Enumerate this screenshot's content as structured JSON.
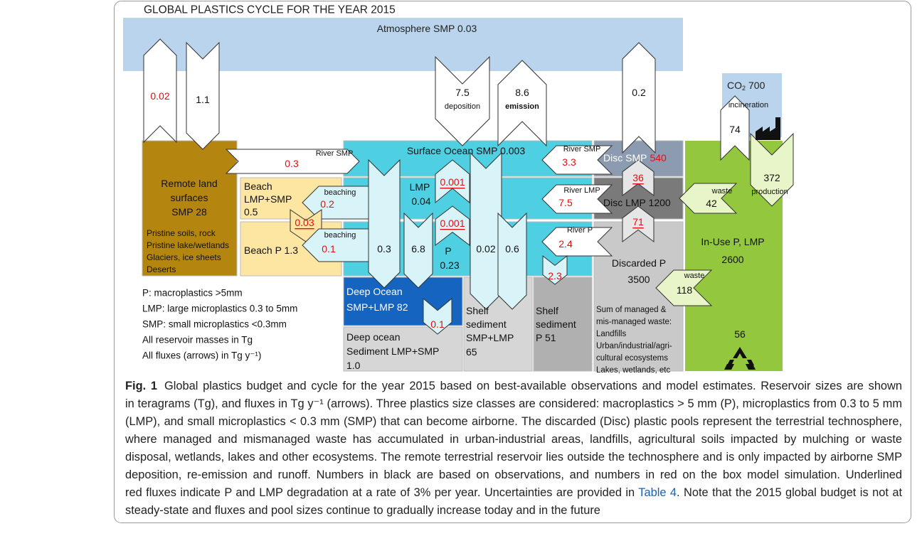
{
  "title": "GLOBAL PLASTICS CYCLE FOR THE YEAR 2015",
  "atmosphere": "Atmosphere SMP 0.03",
  "co2": {
    "name": "CO",
    "subscript": "2",
    "mass": "700"
  },
  "remote_land": {
    "name": [
      "Remote land",
      "surfaces",
      "SMP 28"
    ],
    "types": [
      "Pristine soils, rock",
      "Pristine lake/wetlands",
      "Glaciers, ice sheets",
      "Deserts"
    ]
  },
  "beach_small": [
    "Beach",
    "LMP+SMP",
    "0.5"
  ],
  "beach_macro": "Beach P 1.3",
  "surface_ocean": "Surface Ocean SMP 0.003",
  "ocean_lmp": [
    "LMP",
    "0.04"
  ],
  "ocean_p": [
    "P",
    "0.23"
  ],
  "disc_smp": {
    "name": "Disc SMP",
    "mass": "540"
  },
  "disc_lmp": "Disc LMP 1200",
  "discarded_p": {
    "name": [
      "Discarded P",
      "3500"
    ],
    "notes": [
      "Sum of managed &",
      "mis-managed waste:",
      "Landfills",
      "Urban/industrial/agri-",
      "cultural ecosystems",
      "Lakes, wetlands, etc"
    ]
  },
  "in_use": [
    "In-Use P, LMP",
    "2600"
  ],
  "deep_ocean": [
    "Deep Ocean",
    "SMP+LMP 82"
  ],
  "deep_sediment": [
    "Deep ocean",
    "Sediment LMP+SMP",
    "1.0"
  ],
  "shelf_sediment": [
    "Shelf",
    "sediment",
    "SMP+LMP",
    "65"
  ],
  "shelf_sediment_p": [
    "Shelf",
    "sediment",
    "P 51"
  ],
  "recycling": "56",
  "fluxes": [
    {
      "value": "0.02",
      "source": "model"
    },
    {
      "value": "1.1",
      "source": "observation"
    },
    {
      "value": "0.3",
      "source": "model",
      "label": "River SMP"
    },
    {
      "value": "7.5",
      "source": "observation",
      "label": "deposition"
    },
    {
      "value": "8.6",
      "source": "observation",
      "label": "emission"
    },
    {
      "value": "0.2",
      "source": "observation"
    },
    {
      "value": "74",
      "source": "observation",
      "label": "incineration"
    },
    {
      "value": "372",
      "source": "observation",
      "label": "production"
    },
    {
      "value": "3.3",
      "source": "model",
      "label": "River SMP"
    },
    {
      "value": "7.5",
      "source": "model",
      "label": "River LMP"
    },
    {
      "value": "2.4",
      "source": "model",
      "label": "River P"
    },
    {
      "value": "36",
      "source": "model",
      "underlined": true
    },
    {
      "value": "71",
      "source": "model",
      "underlined": true
    },
    {
      "value": "42",
      "source": "observation",
      "label": "waste"
    },
    {
      "value": "118",
      "source": "observation",
      "label": "waste"
    },
    {
      "value": "0.2",
      "source": "model",
      "label": "beaching"
    },
    {
      "value": "0.03",
      "source": "model",
      "underlined": true
    },
    {
      "value": "0.1",
      "source": "model",
      "label": "beaching"
    },
    {
      "value": "0.001",
      "source": "model",
      "underlined": true
    },
    {
      "value": "0.001",
      "source": "model",
      "underlined": true
    },
    {
      "value": "0.3",
      "source": "observation"
    },
    {
      "value": "6.8",
      "source": "observation"
    },
    {
      "value": "0.02",
      "source": "observation"
    },
    {
      "value": "0.6",
      "source": "observation"
    },
    {
      "value": "2.3",
      "source": "model"
    },
    {
      "value": "0.1",
      "source": "model"
    }
  ],
  "legend": [
    "P: macroplastics >5mm",
    "LMP: large microplastics 0.3 to 5mm",
    "SMP: small microplastics <0.3mm",
    "All reservoir masses in Tg",
    "All fluxes (arrows) in Tg y⁻¹)"
  ],
  "caption": {
    "label": "Fig. 1",
    "lines": [
      "Global plastics budget and cycle for the year 2015 based on best-available observations and model estimates. Reservoir sizes are shown",
      "in teragrams (Tg), and fluxes in Tg y⁻¹ (arrows). Three plastics size classes are considered: macroplastics > 5 mm (P), microplastics from 0.3 to 5 mm",
      "(LMP), and small microplastics < 0.3 mm (SMP) that can become airborne. The discarded (Disc) plastic pools represent the terrestrial technosphere,",
      "where managed and mismanaged waste has accumulated in urban-industrial areas, landfills, agricultural soils impacted by mulching or waste",
      "disposal, wetlands, lakes and other ecosystems. The remote terrestrial reservoir lies outside the technosphere and is only impacted by airborne SMP",
      "deposition, re-emission and runoff. Numbers in black are based on observations, and numbers in red on the box model simulation. Underlined",
      [
        "red fluxes indicate P and LMP degradation at a rate of 3% per year. Uncertainties are provided in ",
        "Table 4",
        ". Note that the 2015 global budget is not at"
      ],
      "steady-state and fluxes and pool sizes continue to gradually increase today and in the future"
    ]
  }
}
